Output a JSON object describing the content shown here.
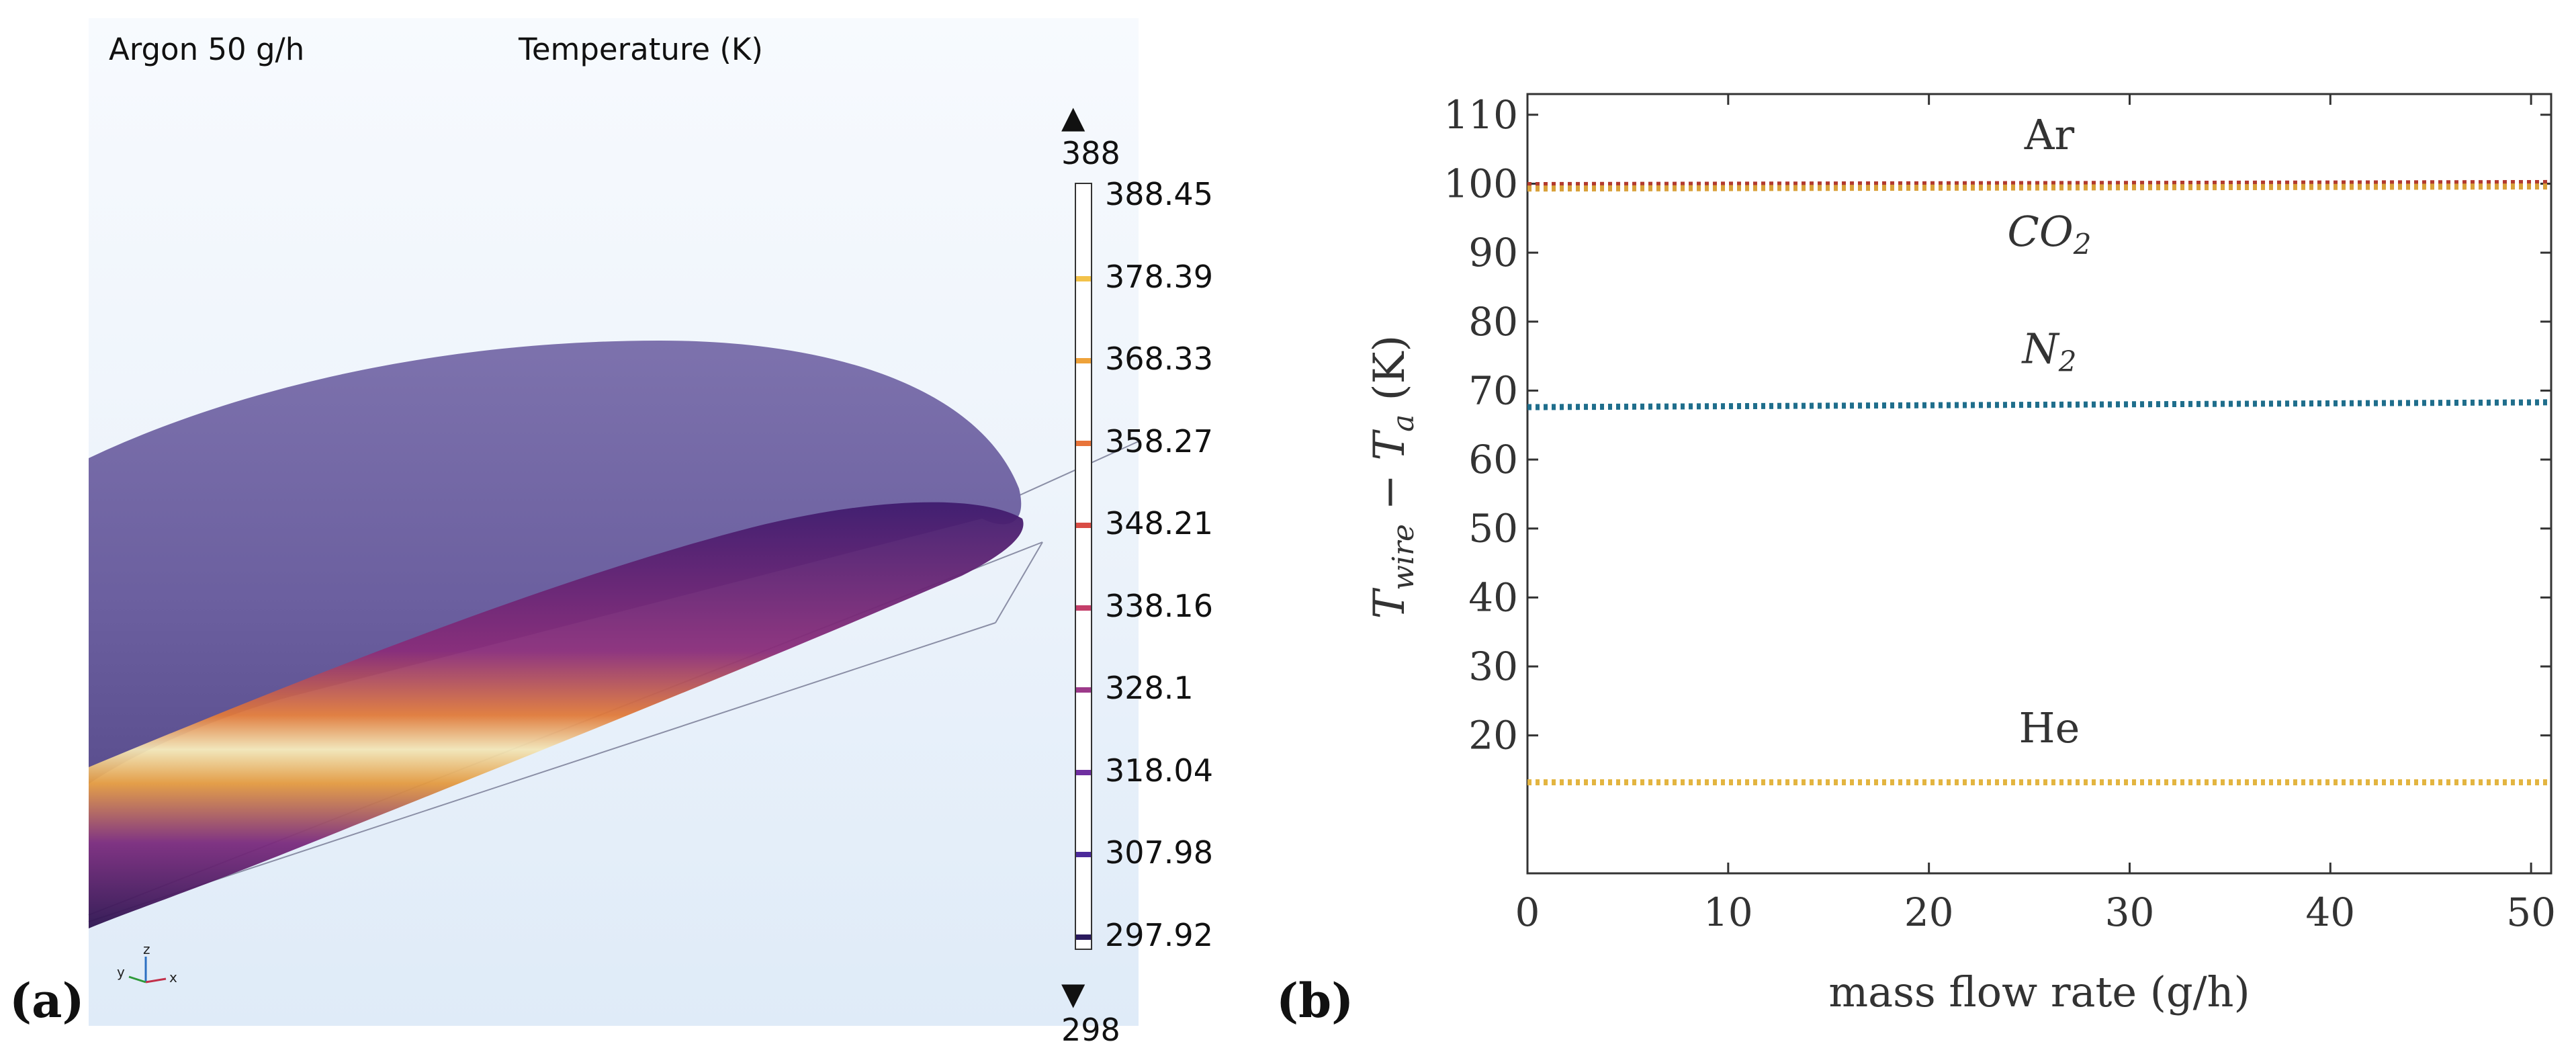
{
  "panel_a": {
    "label": "(a)",
    "subtitle": "Argon 50 g/h",
    "quantity": "Temperature (K)",
    "max_marker": "388",
    "min_marker": "298",
    "colorbar_ticks": [
      "388.45",
      "378.39",
      "368.33",
      "358.27",
      "348.21",
      "338.16",
      "328.1",
      "318.04",
      "307.98",
      "297.92"
    ],
    "axis_triad": {
      "y": "y",
      "z": "z",
      "x": "x"
    }
  },
  "panel_b": {
    "label": "(b)"
  },
  "chart_data": {
    "type": "line",
    "title": "",
    "xlabel": "mass flow rate (g/h)",
    "ylabel": "T_wire − T_a (K)",
    "ylabel_parts": {
      "base1": "T",
      "sub1": "wire",
      "op": " − ",
      "base2": "T",
      "sub2": "a",
      "unit": " (K)"
    },
    "xlim": [
      0,
      51
    ],
    "ylim": [
      0,
      113
    ],
    "xticks": [
      "0",
      "10",
      "20",
      "30",
      "40",
      "50"
    ],
    "yticks": [
      "20",
      "30",
      "40",
      "50",
      "60",
      "70",
      "80",
      "90",
      "100",
      "110"
    ],
    "series": [
      {
        "name": "Ar",
        "x": [
          0,
          51
        ],
        "y": [
          99.8,
          100.1
        ],
        "color": "#b2392e",
        "style": "dotted"
      },
      {
        "name": "CO2",
        "x": [
          0,
          51
        ],
        "y": [
          99.3,
          99.6
        ],
        "color": "#d9a13a",
        "style": "dotted"
      },
      {
        "name": "N2",
        "x": [
          0,
          51
        ],
        "y": [
          67.6,
          68.3
        ],
        "color": "#1f6e8c",
        "style": "dotted"
      },
      {
        "name": "He",
        "x": [
          0,
          51
        ],
        "y": [
          13.2,
          13.2
        ],
        "color": "#e3b541",
        "style": "dotted"
      }
    ],
    "annotations": [
      {
        "text": "Ar",
        "x": 26,
        "y": 105
      },
      {
        "text": "CO",
        "sub": "2",
        "x": 26,
        "y": 91
      },
      {
        "text": "N",
        "sub": "2",
        "x": 26,
        "y": 74
      },
      {
        "text": "He",
        "x": 26,
        "y": 19
      }
    ]
  }
}
